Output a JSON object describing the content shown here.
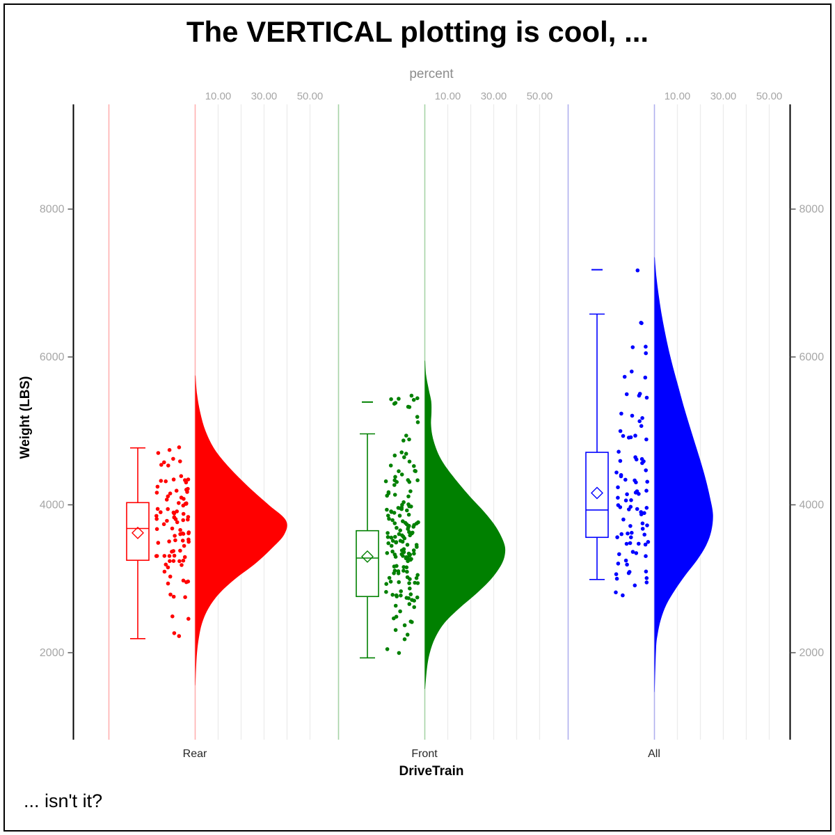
{
  "title": "The VERTICAL plotting is cool, ...",
  "footnote": "... isn't it?",
  "top_axis": {
    "label": "percent",
    "tick_labels": [
      "10.00",
      "30.00",
      "50.00"
    ],
    "tick_values": [
      10,
      30,
      50
    ],
    "gridline_values": [
      10,
      20,
      30,
      40,
      50
    ]
  },
  "y_axis": {
    "label": "Weight (LBS)",
    "tick_values": [
      2000,
      4000,
      6000,
      8000
    ],
    "range": [
      820,
      9400
    ]
  },
  "x_axis": {
    "label": "DriveTrain",
    "categories": [
      "Rear",
      "Front",
      "All"
    ]
  },
  "colors": {
    "rear": "#ff0000",
    "front": "#008000",
    "all": "#0000ff",
    "rear_light": "#ffb0b0",
    "front_light": "#a7d3a7",
    "all_light": "#b0b0ee",
    "gridline": "#ececec",
    "axis_line": "#000000",
    "tick_label": "#a6a6a6",
    "category_label": "#262626"
  },
  "chart_data": {
    "type": "raincloud (half-violin + box plot + jitter strip), vertical orientation",
    "x_categories": [
      "Rear",
      "Front",
      "All"
    ],
    "percent_axis": {
      "label": "percent",
      "ticks": [
        10,
        30,
        50
      ],
      "gridlines": [
        10,
        20,
        30,
        40,
        50
      ],
      "range": [
        0,
        62
      ]
    },
    "weight_axis": {
      "label": "Weight (LBS)",
      "ticks": [
        2000,
        4000,
        6000,
        8000
      ],
      "range": [
        820,
        9400
      ]
    },
    "grid": "vertical percent gridlines per category, no horizontal gridlines",
    "groups": [
      {
        "name": "Rear",
        "color": "#ff0000",
        "light_color": "#ffb0b0",
        "box": {
          "whisker_low": 2190,
          "q1": 3250,
          "median": 3680,
          "mean": 3620,
          "q3": 4030,
          "whisker_high": 4770
        },
        "outliers": [],
        "violin_peak_percent": 39.5,
        "violin_profile": [
          [
            5750,
            0.15
          ],
          [
            5500,
            0.8
          ],
          [
            5250,
            2.2
          ],
          [
            5000,
            4.5
          ],
          [
            4750,
            8.5
          ],
          [
            4500,
            15
          ],
          [
            4250,
            23
          ],
          [
            4000,
            32
          ],
          [
            3790,
            39.5
          ],
          [
            3600,
            38.8
          ],
          [
            3400,
            33
          ],
          [
            3200,
            26
          ],
          [
            3000,
            17.5
          ],
          [
            2800,
            10.5
          ],
          [
            2600,
            5.8
          ],
          [
            2400,
            3
          ],
          [
            2200,
            1.6
          ],
          [
            2000,
            0.8
          ],
          [
            1800,
            0.4
          ],
          [
            1560,
            0.1
          ]
        ],
        "jitter_count": 94,
        "jitter_clusters": [
          [
            4740,
            40,
            3
          ],
          [
            4580,
            80,
            5
          ],
          [
            4380,
            90,
            7
          ],
          [
            4180,
            100,
            9
          ],
          [
            3980,
            110,
            12
          ],
          [
            3780,
            110,
            14
          ],
          [
            3580,
            110,
            13
          ],
          [
            3380,
            110,
            11
          ],
          [
            3180,
            100,
            8
          ],
          [
            2980,
            90,
            5
          ],
          [
            2780,
            70,
            3
          ],
          [
            2450,
            60,
            2
          ],
          [
            2230,
            40,
            2
          ]
        ]
      },
      {
        "name": "Front",
        "color": "#008000",
        "light_color": "#a7d3a7",
        "box": {
          "whisker_low": 1930,
          "q1": 2760,
          "median": 3280,
          "mean": 3300,
          "q3": 3650,
          "whisker_high": 4960
        },
        "outliers": [
          5390
        ],
        "violin_peak_percent": 35,
        "violin_profile": [
          [
            5950,
            0.15
          ],
          [
            5750,
            0.6
          ],
          [
            5550,
            1.8
          ],
          [
            5400,
            2.8
          ],
          [
            5250,
            2.9
          ],
          [
            5100,
            2.7
          ],
          [
            4950,
            3.2
          ],
          [
            4800,
            4.5
          ],
          [
            4650,
            6.5
          ],
          [
            4500,
            9.5
          ],
          [
            4300,
            14.5
          ],
          [
            4100,
            20
          ],
          [
            3900,
            26
          ],
          [
            3700,
            31
          ],
          [
            3500,
            34.3
          ],
          [
            3360,
            35
          ],
          [
            3200,
            33.5
          ],
          [
            3000,
            29
          ],
          [
            2800,
            22.5
          ],
          [
            2600,
            15
          ],
          [
            2400,
            8.5
          ],
          [
            2200,
            4.5
          ],
          [
            2000,
            2.2
          ],
          [
            1800,
            1
          ],
          [
            1510,
            0.15
          ]
        ],
        "jitter_count": 161,
        "jitter_clusters": [
          [
            5400,
            90,
            9
          ],
          [
            5150,
            60,
            2
          ],
          [
            4900,
            70,
            3
          ],
          [
            4650,
            90,
            5
          ],
          [
            4450,
            90,
            7
          ],
          [
            4250,
            100,
            9
          ],
          [
            4050,
            110,
            12
          ],
          [
            3850,
            110,
            15
          ],
          [
            3650,
            120,
            18
          ],
          [
            3450,
            120,
            19
          ],
          [
            3250,
            120,
            18
          ],
          [
            3050,
            110,
            15
          ],
          [
            2850,
            110,
            11
          ],
          [
            2650,
            100,
            8
          ],
          [
            2450,
            90,
            5
          ],
          [
            2250,
            70,
            3
          ],
          [
            2050,
            60,
            2
          ]
        ]
      },
      {
        "name": "All",
        "color": "#0000ff",
        "light_color": "#b0b0ee",
        "box": {
          "whisker_low": 2990,
          "q1": 3560,
          "median": 3930,
          "mean": 4160,
          "q3": 4710,
          "whisker_high": 6580
        },
        "outliers": [
          7180
        ],
        "violin_peak_percent": 25.5,
        "violin_profile": [
          [
            7350,
            0.15
          ],
          [
            7100,
            0.8
          ],
          [
            6850,
            1.8
          ],
          [
            6600,
            3
          ],
          [
            6350,
            4.5
          ],
          [
            6100,
            6.2
          ],
          [
            5850,
            8.2
          ],
          [
            5600,
            10.4
          ],
          [
            5350,
            12.6
          ],
          [
            5100,
            15
          ],
          [
            4850,
            17.5
          ],
          [
            4600,
            20
          ],
          [
            4350,
            22.3
          ],
          [
            4100,
            24.2
          ],
          [
            3870,
            25.5
          ],
          [
            3650,
            24.8
          ],
          [
            3450,
            22.5
          ],
          [
            3250,
            18.5
          ],
          [
            3050,
            13.5
          ],
          [
            2850,
            9
          ],
          [
            2650,
            5.2
          ],
          [
            2450,
            2.8
          ],
          [
            2250,
            1.4
          ],
          [
            2050,
            0.7
          ],
          [
            1470,
            0.1
          ]
        ],
        "jitter_count": 90,
        "jitter_clusters": [
          [
            7180,
            15,
            1
          ],
          [
            6420,
            80,
            2
          ],
          [
            6050,
            100,
            3
          ],
          [
            5750,
            90,
            3
          ],
          [
            5450,
            100,
            4
          ],
          [
            5150,
            100,
            5
          ],
          [
            4900,
            100,
            6
          ],
          [
            4650,
            100,
            7
          ],
          [
            4400,
            110,
            8
          ],
          [
            4150,
            110,
            9
          ],
          [
            3900,
            110,
            10
          ],
          [
            3650,
            110,
            10
          ],
          [
            3400,
            110,
            9
          ],
          [
            3150,
            100,
            7
          ],
          [
            2950,
            80,
            4
          ],
          [
            2780,
            60,
            2
          ]
        ]
      }
    ]
  }
}
